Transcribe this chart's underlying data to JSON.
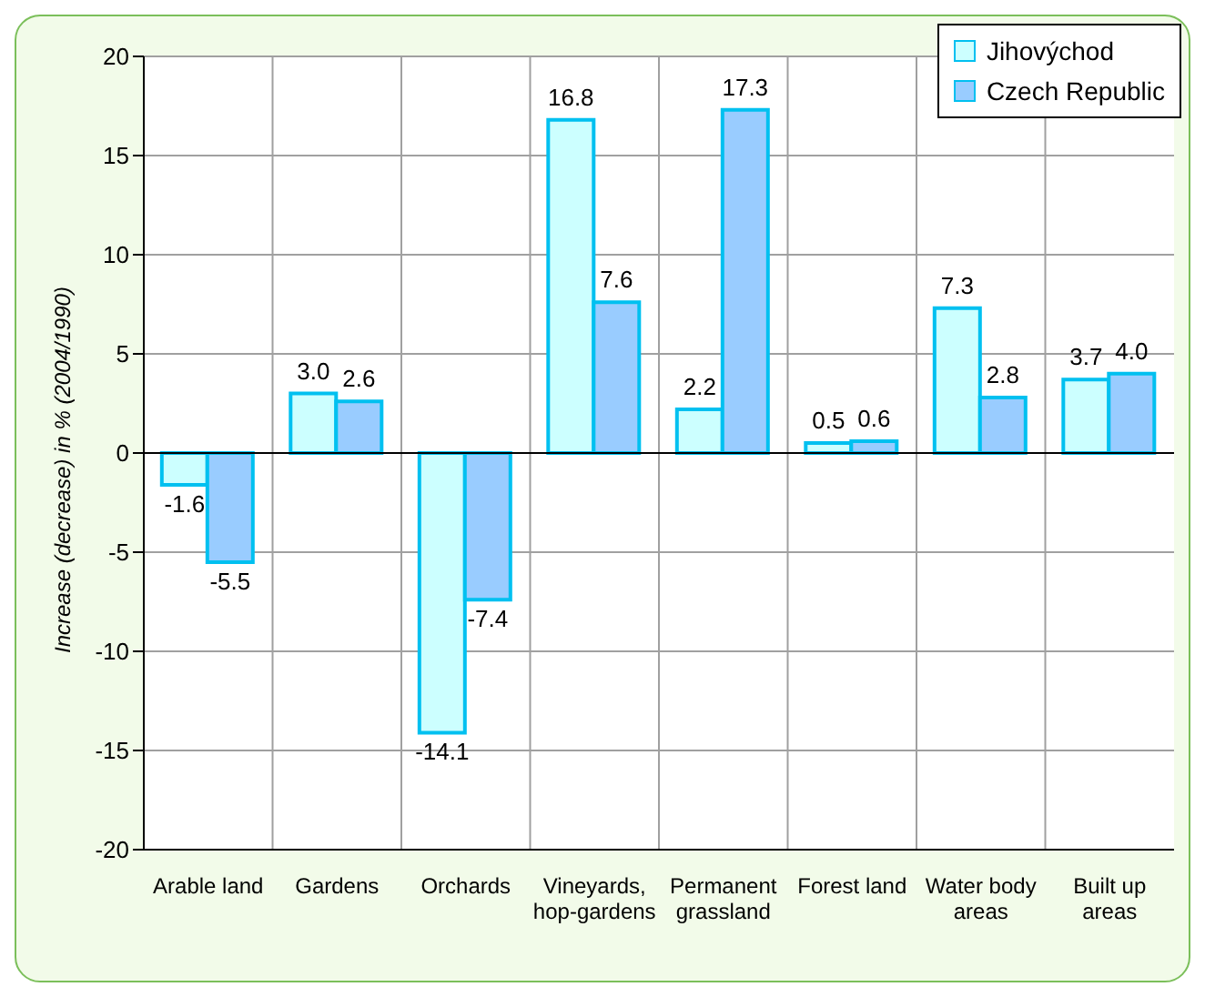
{
  "chart_data": {
    "type": "bar",
    "ylabel": "Increase (decrease) in  % (2004/1990)",
    "categories": [
      "Arable land",
      "Gardens",
      "Orchards",
      "Vineyards, hop-gardens",
      "Permanent grassland",
      "Forest land",
      "Water body areas",
      "Built up areas"
    ],
    "series": [
      {
        "name": "Jihovýchod",
        "color": "#ccffff",
        "values": [
          -1.6,
          3.0,
          -14.1,
          16.8,
          2.2,
          0.5,
          7.3,
          3.7
        ],
        "value_labels": [
          "-1.6",
          "3.0",
          "-14.1",
          "16.8",
          "2.2",
          "0.5",
          "7.3",
          "3.7"
        ]
      },
      {
        "name": "Czech Republic",
        "color": "#99ccff",
        "values": [
          -5.5,
          2.6,
          -7.4,
          7.6,
          17.3,
          0.6,
          2.8,
          4.0
        ],
        "value_labels": [
          "-5.5",
          "2.6",
          "-7.4",
          "7.6",
          "17.3",
          "0.6",
          "2.8",
          "4.0"
        ]
      }
    ],
    "ylim": [
      -20,
      20
    ],
    "yticks": [
      -20,
      -15,
      -10,
      -5,
      0,
      5,
      10,
      15,
      20
    ],
    "grid": true,
    "legend": "top right"
  }
}
